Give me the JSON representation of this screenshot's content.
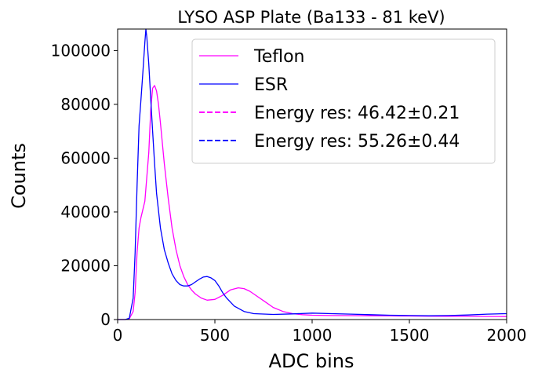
{
  "chart_data": {
    "type": "line",
    "title": "LYSO ASP Plate (Ba133 - 81 keV)",
    "xlabel": "ADC bins",
    "ylabel": "Counts",
    "xlim": [
      0,
      2000
    ],
    "ylim": [
      0,
      108000
    ],
    "xticks": [
      0,
      500,
      1000,
      1500,
      2000
    ],
    "xtick_labels": [
      "0",
      "500",
      "1000",
      "1500",
      "2000"
    ],
    "yticks": [
      0,
      20000,
      40000,
      60000,
      80000,
      100000
    ],
    "ytick_labels": [
      "0",
      "20000",
      "40000",
      "60000",
      "80000",
      "100000"
    ],
    "grid": false,
    "legend_position": "top-right",
    "legend": [
      {
        "label": "Teflon",
        "color": "#ff00ff",
        "style": "solid"
      },
      {
        "label": "ESR",
        "color": "#0000ff",
        "style": "solid"
      },
      {
        "label": "Energy res: 46.42±0.21",
        "color": "#ff00ff",
        "style": "dashed"
      },
      {
        "label": "Energy res: 55.26±0.44",
        "color": "#0000ff",
        "style": "dashed"
      }
    ],
    "series": [
      {
        "name": "Teflon",
        "color": "#ff00ff",
        "x": [
          0,
          40,
          60,
          80,
          90,
          100,
          110,
          120,
          140,
          160,
          170,
          180,
          190,
          200,
          210,
          220,
          240,
          260,
          280,
          300,
          320,
          340,
          360,
          380,
          400,
          430,
          460,
          500,
          540,
          580,
          620,
          650,
          680,
          720,
          760,
          800,
          850,
          900,
          950,
          1000,
          1100,
          1200,
          1300,
          1400,
          1500,
          1600,
          1700,
          1800,
          1900,
          2000
        ],
        "y": [
          0,
          0,
          300,
          3000,
          10000,
          25000,
          34000,
          38000,
          44000,
          62000,
          78000,
          86000,
          87000,
          85000,
          80000,
          73000,
          58000,
          45000,
          34000,
          26000,
          20000,
          16000,
          13000,
          11000,
          9500,
          8000,
          7200,
          7500,
          9000,
          11000,
          11800,
          11500,
          10500,
          8500,
          6500,
          4500,
          3000,
          2200,
          1800,
          1600,
          1500,
          1450,
          1400,
          1350,
          1300,
          1250,
          1200,
          1200,
          1150,
          1100
        ]
      },
      {
        "name": "ESR",
        "color": "#0000ff",
        "x": [
          0,
          40,
          60,
          80,
          90,
          100,
          110,
          120,
          130,
          140,
          145,
          150,
          160,
          170,
          180,
          190,
          200,
          220,
          240,
          260,
          280,
          300,
          320,
          340,
          360,
          380,
          400,
          420,
          440,
          460,
          480,
          500,
          520,
          540,
          560,
          600,
          650,
          700,
          800,
          900,
          1000,
          1100,
          1200,
          1300,
          1400,
          1500,
          1600,
          1700,
          1800,
          1900,
          2000
        ],
        "y": [
          0,
          0,
          500,
          8000,
          25000,
          50000,
          72000,
          82000,
          92000,
          103000,
          108000,
          105000,
          95000,
          82000,
          70000,
          58000,
          47000,
          34000,
          26000,
          21000,
          17000,
          14500,
          13000,
          12500,
          12500,
          13000,
          14000,
          15000,
          15800,
          16000,
          15500,
          14500,
          12500,
          10000,
          8000,
          5000,
          3000,
          2200,
          1900,
          2100,
          2400,
          2200,
          2000,
          1800,
          1600,
          1500,
          1400,
          1500,
          1700,
          2000,
          2200
        ]
      }
    ]
  }
}
